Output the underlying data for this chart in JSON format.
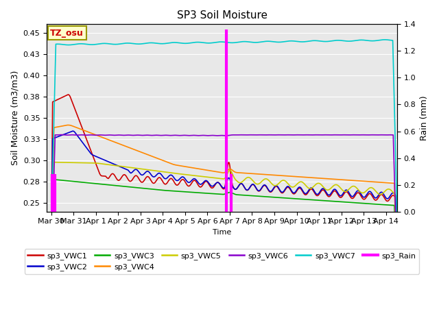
{
  "title": "SP3 Soil Moisture",
  "xlabel": "Time",
  "ylabel_left": "Soil Moisture (m3/m3)",
  "ylabel_right": "Rain (mm)",
  "ylim_left": [
    0.24,
    0.46
  ],
  "ylim_right": [
    0.0,
    1.4
  ],
  "xlim_days": [
    -0.2,
    15.5
  ],
  "annotation_label": "TZ_osu",
  "annotation_color": "#cc0000",
  "annotation_bg": "#ffffcc",
  "annotation_border": "#999900",
  "bg_color": "#e8e8e8",
  "colors": {
    "VWC1": "#cc0000",
    "VWC2": "#0000cc",
    "VWC3": "#00aa00",
    "VWC4": "#ff8800",
    "VWC5": "#cccc00",
    "VWC6": "#8800cc",
    "VWC7": "#00cccc",
    "Rain": "#ff00ff"
  },
  "legend_labels": [
    "sp3_VWC1",
    "sp3_VWC2",
    "sp3_VWC3",
    "sp3_VWC4",
    "sp3_VWC5",
    "sp3_VWC6",
    "sp3_VWC7",
    "sp3_Rain"
  ],
  "xtick_labels": [
    "Mar 30",
    "Mar 31",
    "Apr 1",
    "Apr 2",
    "Apr 3",
    "Apr 4",
    "Apr 5",
    "Apr 6",
    "Apr 7",
    "Apr 8",
    "Apr 9",
    "Apr 10",
    "Apr 11",
    "Apr 12",
    "Apr 13",
    "Apr 14"
  ],
  "xtick_positions": [
    0,
    1,
    2,
    3,
    4,
    5,
    6,
    7,
    8,
    9,
    10,
    11,
    12,
    13,
    14,
    15
  ],
  "rain_times": [
    0.05,
    0.15,
    7.85,
    8.05
  ],
  "rain_values_mm": [
    0.28,
    0.28,
    1.36,
    0.28
  ]
}
